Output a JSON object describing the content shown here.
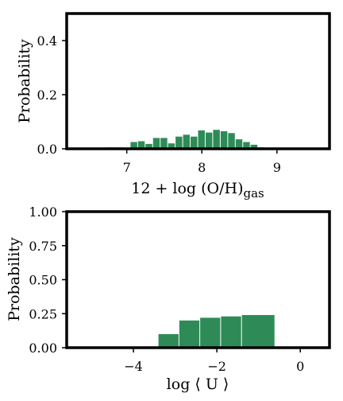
{
  "colors": {
    "bar": "#2e8b57",
    "frame": "#000000",
    "background": "#ffffff"
  },
  "chart_data": [
    {
      "type": "bar",
      "title": "",
      "xlabel": "12 + log (O/H)",
      "xlabel_subscript": "gas",
      "ylabel": "Probability",
      "xlim": [
        6.2,
        9.7
      ],
      "ylim": [
        0.0,
        0.5
      ],
      "xticks": [
        7,
        8,
        9
      ],
      "yticks": [
        0.0,
        0.2,
        0.4
      ],
      "ytick_labels": [
        "0.0",
        "0.2",
        "0.4"
      ],
      "grid": false,
      "bin_width": 0.1,
      "bins": [
        {
          "x": 6.8,
          "y": 0.005
        },
        {
          "x": 6.9,
          "y": 0.005
        },
        {
          "x": 7.0,
          "y": 0.004
        },
        {
          "x": 7.1,
          "y": 0.025
        },
        {
          "x": 7.2,
          "y": 0.028
        },
        {
          "x": 7.3,
          "y": 0.018
        },
        {
          "x": 7.4,
          "y": 0.04
        },
        {
          "x": 7.5,
          "y": 0.04
        },
        {
          "x": 7.6,
          "y": 0.02
        },
        {
          "x": 7.7,
          "y": 0.045
        },
        {
          "x": 7.8,
          "y": 0.052
        },
        {
          "x": 7.9,
          "y": 0.045
        },
        {
          "x": 8.0,
          "y": 0.068
        },
        {
          "x": 8.1,
          "y": 0.06
        },
        {
          "x": 8.2,
          "y": 0.07
        },
        {
          "x": 8.3,
          "y": 0.065
        },
        {
          "x": 8.4,
          "y": 0.058
        },
        {
          "x": 8.5,
          "y": 0.035
        },
        {
          "x": 8.6,
          "y": 0.025
        },
        {
          "x": 8.7,
          "y": 0.015
        },
        {
          "x": 8.8,
          "y": 0.005
        }
      ]
    },
    {
      "type": "bar",
      "title": "",
      "xlabel": "log ⟨ U ⟩",
      "ylabel": "Probability",
      "xlim": [
        -5.6,
        0.7
      ],
      "ylim": [
        0.0,
        1.0
      ],
      "xticks": [
        -4,
        -2,
        0
      ],
      "xtick_labels": [
        "−4",
        "−2",
        "0"
      ],
      "yticks": [
        0.0,
        0.25,
        0.5,
        0.75,
        1.0
      ],
      "ytick_labels": [
        "0.00",
        "0.25",
        "0.50",
        "0.75",
        "1.00"
      ],
      "grid": false,
      "bins": [
        {
          "x0": -3.4,
          "x1": -2.9,
          "y": 0.1
        },
        {
          "x0": -2.9,
          "x1": -2.4,
          "y": 0.2
        },
        {
          "x0": -2.4,
          "x1": -1.9,
          "y": 0.22
        },
        {
          "x0": -1.9,
          "x1": -1.4,
          "y": 0.23
        },
        {
          "x0": -1.4,
          "x1": -0.6,
          "y": 0.24
        }
      ]
    }
  ]
}
